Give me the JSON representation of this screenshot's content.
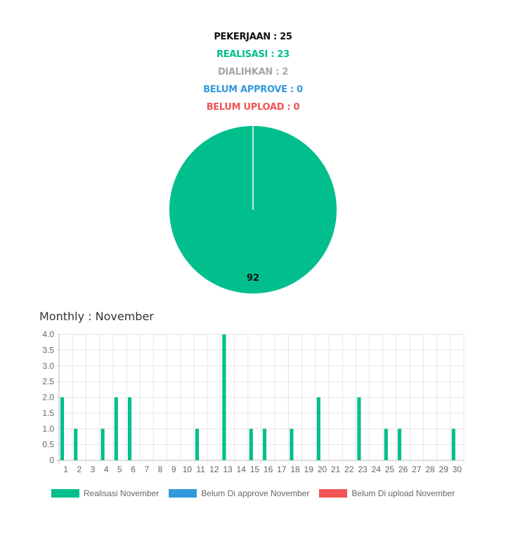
{
  "stats": {
    "pekerjaan": "PEKERJAAN : 25",
    "realisasi": "REALISASI : 23",
    "dialihkan": "DIALIHKAN : 2",
    "belum_approve": "BELUM APPROVE : 0",
    "belum_upload": "BELUM UPLOAD : 0"
  },
  "colors": {
    "realisasi": "#00bf8c",
    "dialihkan": "#a6a6a6",
    "belum_approve": "#3399dd",
    "belum_upload": "#f05454"
  },
  "chart_data": [
    {
      "type": "pie",
      "slices": [
        {
          "value": 92,
          "label": "92",
          "color": "#00bf8c"
        },
        {
          "value": 0,
          "color": "#3399dd"
        },
        {
          "value": 0,
          "color": "#f05454"
        }
      ]
    },
    {
      "type": "bar",
      "title": "Monthly : November",
      "categories": [
        "1",
        "2",
        "3",
        "4",
        "5",
        "6",
        "7",
        "8",
        "9",
        "10",
        "11",
        "12",
        "13",
        "14",
        "15",
        "16",
        "17",
        "18",
        "19",
        "20",
        "21",
        "22",
        "23",
        "24",
        "25",
        "26",
        "27",
        "28",
        "29",
        "30"
      ],
      "series": [
        {
          "name": "Realisasi November",
          "color": "#00bf8c",
          "values": [
            2,
            1,
            0,
            1,
            2,
            2,
            0,
            0,
            0,
            0,
            1,
            0,
            4,
            0,
            1,
            1,
            0,
            1,
            0,
            2,
            0,
            0,
            2,
            0,
            1,
            1,
            0,
            0,
            0,
            1
          ]
        },
        {
          "name": "Belum Di approve November",
          "color": "#3399dd",
          "values": [
            0,
            0,
            0,
            0,
            0,
            0,
            0,
            0,
            0,
            0,
            0,
            0,
            0,
            0,
            0,
            0,
            0,
            0,
            0,
            0,
            0,
            0,
            0,
            0,
            0,
            0,
            0,
            0,
            0,
            0
          ]
        },
        {
          "name": "Belum Di upload November",
          "color": "#f05454",
          "values": [
            0,
            0,
            0,
            0,
            0,
            0,
            0,
            0,
            0,
            0,
            0,
            0,
            0,
            0,
            0,
            0,
            0,
            0,
            0,
            0,
            0,
            0,
            0,
            0,
            0,
            0,
            0,
            0,
            0,
            0
          ]
        }
      ],
      "ylim": [
        0,
        4
      ],
      "yticks": [
        "0",
        "0.5",
        "1.0",
        "1.5",
        "2.0",
        "2.5",
        "3.0",
        "3.5",
        "4.0"
      ],
      "grid": true,
      "legend": "bottom"
    }
  ]
}
